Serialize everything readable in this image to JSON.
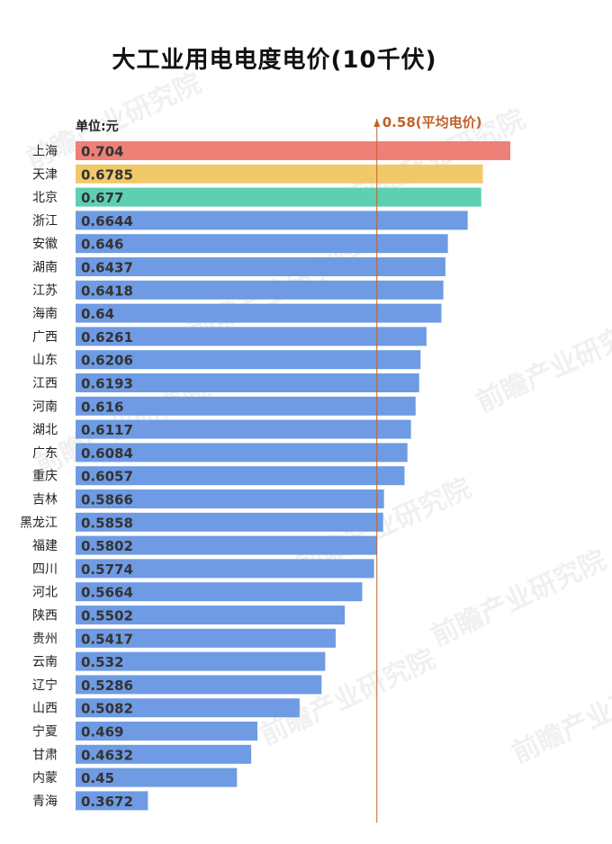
{
  "title": "大工业用电电度电价(10千伏)",
  "unit": "单位:元",
  "watermark": "前瞻产业研究院",
  "chart_data": {
    "type": "bar",
    "orientation": "horizontal",
    "title": "大工业用电电度电价(10千伏)",
    "xlabel": "",
    "ylabel": "",
    "unit": "单位:元",
    "xlim": [
      0.3,
      0.71
    ],
    "categories": [
      "上海",
      "天津",
      "北京",
      "浙江",
      "安徽",
      "湖南",
      "江苏",
      "海南",
      "广西",
      "山东",
      "江西",
      "河南",
      "湖北",
      "广东",
      "重庆",
      "吉林",
      "黑龙江",
      "福建",
      "四川",
      "河北",
      "陕西",
      "贵州",
      "云南",
      "辽宁",
      "山西",
      "宁夏",
      "甘肃",
      "内蒙",
      "青海"
    ],
    "values": [
      0.704,
      0.6785,
      0.677,
      0.6644,
      0.646,
      0.6437,
      0.6418,
      0.64,
      0.6261,
      0.6206,
      0.6193,
      0.616,
      0.6117,
      0.6084,
      0.6057,
      0.5866,
      0.5858,
      0.5802,
      0.5774,
      0.5664,
      0.5502,
      0.5417,
      0.532,
      0.5286,
      0.5082,
      0.469,
      0.4632,
      0.45,
      0.3672
    ],
    "value_labels": [
      "0.704",
      "0.6785",
      "0.677",
      "0.6644",
      "0.646",
      "0.6437",
      "0.6418",
      "0.64",
      "0.6261",
      "0.6206",
      "0.6193",
      "0.616",
      "0.6117",
      "0.6084",
      "0.6057",
      "0.5866",
      "0.5858",
      "0.5802",
      "0.5774",
      "0.5664",
      "0.5502",
      "0.5417",
      "0.532",
      "0.5286",
      "0.5082",
      "0.469",
      "0.4632",
      "0.45",
      "0.3672"
    ],
    "bar_colors": [
      "#ee8077",
      "#f1c96a",
      "#5ecfb2"
    ],
    "default_color": "#6e9be3",
    "reference_line": {
      "value": 0.58,
      "label": "0.58(平均电价)",
      "color": "#c0622a"
    },
    "grid": false,
    "legend": "none"
  }
}
